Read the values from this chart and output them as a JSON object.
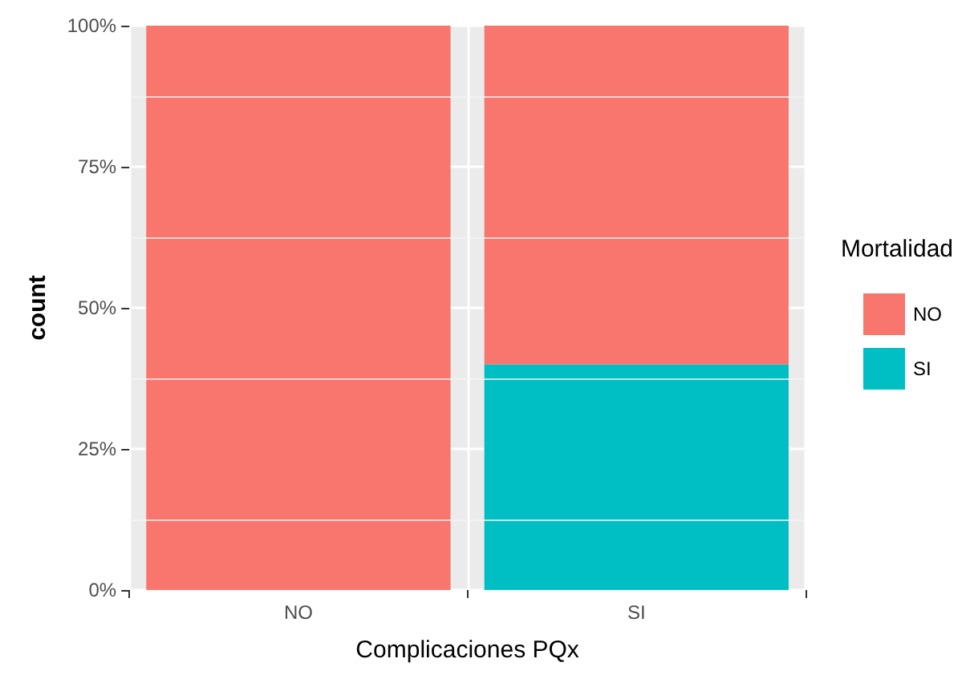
{
  "chart_data": {
    "type": "bar",
    "stacked": true,
    "xlabel": "Complicaciones PQx",
    "ylabel": "count",
    "legend_title": "Mortalidad",
    "categories": [
      "NO",
      "SI"
    ],
    "series": [
      {
        "name": "SI",
        "color": "#00bfc4",
        "values": [
          0,
          40
        ]
      },
      {
        "name": "NO",
        "color": "#f8766d",
        "values": [
          100,
          60
        ]
      }
    ],
    "ylim": [
      0,
      100
    ],
    "yticks": [
      {
        "value": 0,
        "label": "0%"
      },
      {
        "value": 25,
        "label": "25%"
      },
      {
        "value": 50,
        "label": "50%"
      },
      {
        "value": 75,
        "label": "75%"
      },
      {
        "value": 100,
        "label": "100%"
      }
    ],
    "grid": true,
    "legend": "right"
  }
}
